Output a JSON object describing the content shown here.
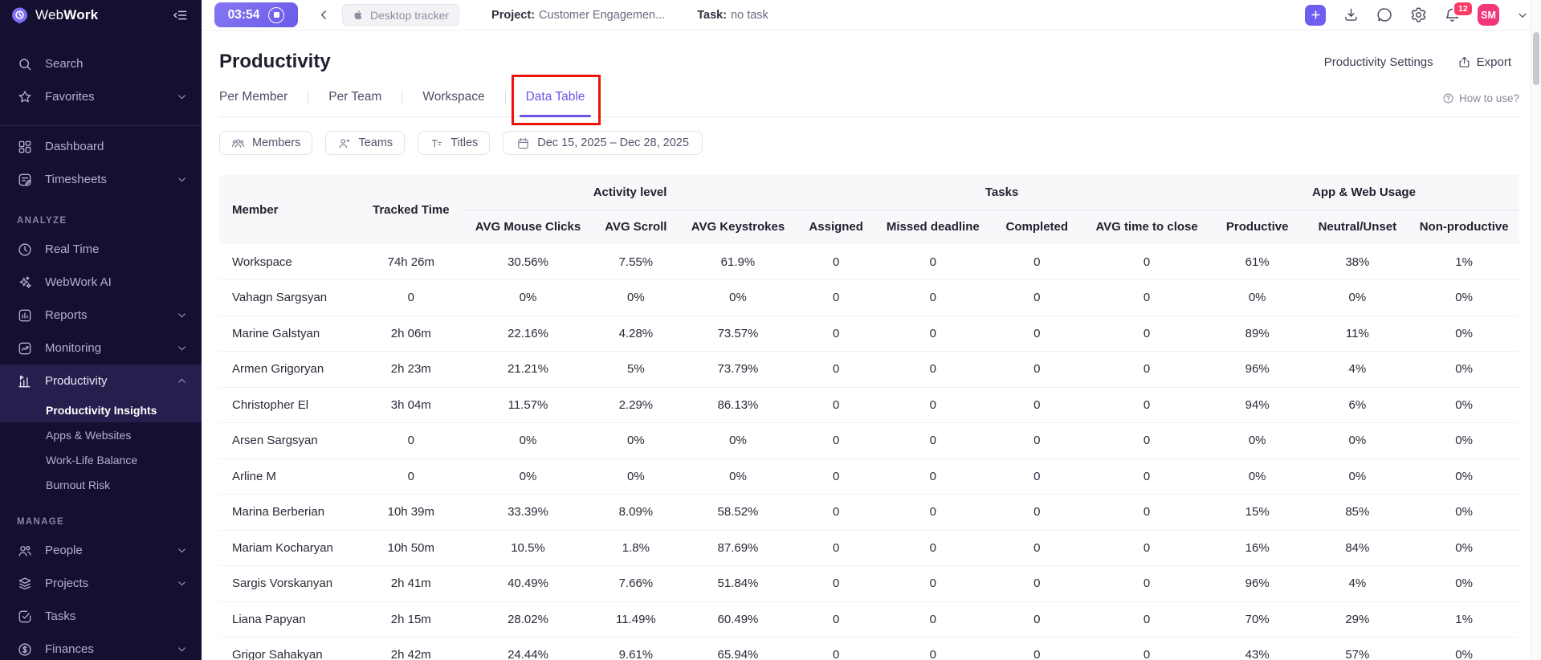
{
  "colors": {
    "accent_purple": "#6757e8",
    "timer_pill_purple": "#6a5ae8",
    "sidebar_bg": "#151031",
    "sidebar_highlight": "#261f4e",
    "avatar_pink": "#f0377b",
    "badge_red": "#fb3b64",
    "annotation_red": "#e9150b",
    "table_header_bg": "#f8f8fb"
  },
  "topbar": {
    "timer_value": "03:54",
    "tracker_label": "Desktop tracker",
    "project_label": "Project:",
    "project_value": "Customer Engagemen...",
    "task_label": "Task:",
    "task_value": "no task",
    "notification_badge": "12",
    "avatar_initials": "SM"
  },
  "sidebar": {
    "brand_web": "Web",
    "brand_work": "Work",
    "items": [
      {
        "type": "link",
        "label": "Search",
        "icon": "search"
      },
      {
        "type": "link",
        "label": "Favorites",
        "icon": "star",
        "chevron": "down"
      },
      {
        "type": "divider"
      },
      {
        "type": "link",
        "label": "Dashboard",
        "icon": "dashboard"
      },
      {
        "type": "link",
        "label": "Timesheets",
        "icon": "timesheets",
        "chevron": "down"
      },
      {
        "type": "section",
        "label": "ANALYZE"
      },
      {
        "type": "link",
        "label": "Real Time",
        "icon": "clock"
      },
      {
        "type": "link",
        "label": "WebWork AI",
        "icon": "sparkles"
      },
      {
        "type": "link",
        "label": "Reports",
        "icon": "reports",
        "chevron": "down"
      },
      {
        "type": "link",
        "label": "Monitoring",
        "icon": "monitoring",
        "chevron": "down"
      },
      {
        "type": "link",
        "label": "Productivity",
        "icon": "productivity",
        "chevron": "up",
        "highlight": true
      },
      {
        "type": "child",
        "label": "Productivity Insights",
        "active": true,
        "highlight": true
      },
      {
        "type": "child",
        "label": "Apps & Websites"
      },
      {
        "type": "child",
        "label": "Work-Life Balance"
      },
      {
        "type": "child",
        "label": "Burnout Risk"
      },
      {
        "type": "section",
        "label": "MANAGE"
      },
      {
        "type": "link",
        "label": "People",
        "icon": "people",
        "chevron": "down"
      },
      {
        "type": "link",
        "label": "Projects",
        "icon": "projects",
        "chevron": "down"
      },
      {
        "type": "link",
        "label": "Tasks",
        "icon": "tasks"
      },
      {
        "type": "link",
        "label": "Finances",
        "icon": "finances",
        "chevron": "down"
      }
    ]
  },
  "page": {
    "title": "Productivity",
    "settings_label": "Productivity Settings",
    "export_label": "Export",
    "help_label": "How to use?"
  },
  "tabs": [
    {
      "label": "Per Member",
      "active": false
    },
    {
      "label": "Per Team",
      "active": false
    },
    {
      "label": "Workspace",
      "active": false
    },
    {
      "label": "Data Table",
      "active": true
    }
  ],
  "filters": [
    {
      "label": "Members",
      "icon": "members"
    },
    {
      "label": "Teams",
      "icon": "teams"
    },
    {
      "label": "Titles",
      "icon": "titles"
    },
    {
      "label": "Dec 15, 2025 – Dec 28, 2025",
      "icon": "calendar"
    }
  ],
  "table": {
    "groups": [
      {
        "label": "Activity level",
        "span": 3
      },
      {
        "label": "Tasks",
        "span": 4
      },
      {
        "label": "App & Web Usage",
        "span": 3
      }
    ],
    "columns": [
      "Member",
      "Tracked Time",
      "AVG Mouse Clicks",
      "AVG Scroll",
      "AVG Keystrokes",
      "Assigned",
      "Missed deadline",
      "Completed",
      "AVG time to close",
      "Productive",
      "Neutral/Unset",
      "Non-productive"
    ],
    "rows": [
      [
        "Workspace",
        "74h 26m",
        "30.56%",
        "7.55%",
        "61.9%",
        "0",
        "0",
        "0",
        "0",
        "61%",
        "38%",
        "1%"
      ],
      [
        "Vahagn Sargsyan",
        "0",
        "0%",
        "0%",
        "0%",
        "0",
        "0",
        "0",
        "0",
        "0%",
        "0%",
        "0%"
      ],
      [
        "Marine Galstyan",
        "2h 06m",
        "22.16%",
        "4.28%",
        "73.57%",
        "0",
        "0",
        "0",
        "0",
        "89%",
        "11%",
        "0%"
      ],
      [
        "Armen Grigoryan",
        "2h 23m",
        "21.21%",
        "5%",
        "73.79%",
        "0",
        "0",
        "0",
        "0",
        "96%",
        "4%",
        "0%"
      ],
      [
        "Christopher El",
        "3h 04m",
        "11.57%",
        "2.29%",
        "86.13%",
        "0",
        "0",
        "0",
        "0",
        "94%",
        "6%",
        "0%"
      ],
      [
        "Arsen Sargsyan",
        "0",
        "0%",
        "0%",
        "0%",
        "0",
        "0",
        "0",
        "0",
        "0%",
        "0%",
        "0%"
      ],
      [
        "Arline M",
        "0",
        "0%",
        "0%",
        "0%",
        "0",
        "0",
        "0",
        "0",
        "0%",
        "0%",
        "0%"
      ],
      [
        "Marina Berberian",
        "10h 39m",
        "33.39%",
        "8.09%",
        "58.52%",
        "0",
        "0",
        "0",
        "0",
        "15%",
        "85%",
        "0%"
      ],
      [
        "Mariam Kocharyan",
        "10h 50m",
        "10.5%",
        "1.8%",
        "87.69%",
        "0",
        "0",
        "0",
        "0",
        "16%",
        "84%",
        "0%"
      ],
      [
        "Sargis Vorskanyan",
        "2h 41m",
        "40.49%",
        "7.66%",
        "51.84%",
        "0",
        "0",
        "0",
        "0",
        "96%",
        "4%",
        "0%"
      ],
      [
        "Liana Papyan",
        "2h 15m",
        "28.02%",
        "11.49%",
        "60.49%",
        "0",
        "0",
        "0",
        "0",
        "70%",
        "29%",
        "1%"
      ],
      [
        "Grigor Sahakyan",
        "2h 42m",
        "24.44%",
        "9.61%",
        "65.94%",
        "0",
        "0",
        "0",
        "0",
        "43%",
        "57%",
        "0%"
      ]
    ]
  }
}
